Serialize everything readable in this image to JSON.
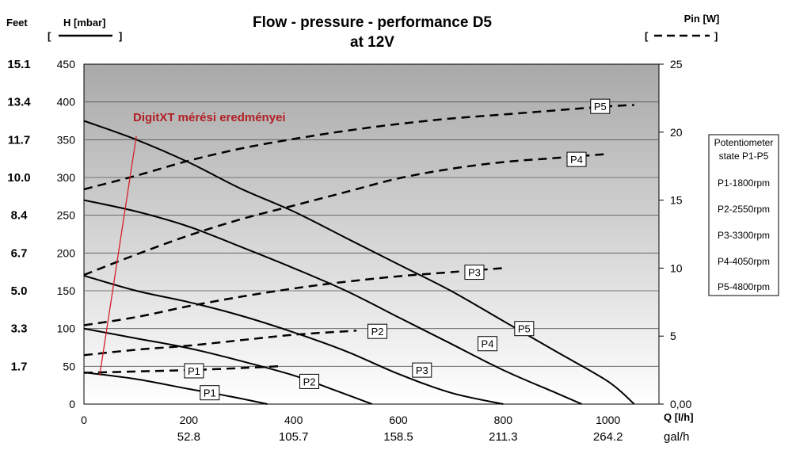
{
  "chart_data": {
    "type": "line",
    "title": "Flow - pressure - performance D5",
    "subtitle": "at 12V",
    "left_axis": {
      "header": "Feet",
      "label": "H [mbar]",
      "bracket_open": "[",
      "bracket_close": "]",
      "ticks": [
        0,
        50,
        100,
        150,
        200,
        250,
        300,
        350,
        400,
        450
      ],
      "ylim": [
        0,
        450
      ],
      "feet_ticks": [
        {
          "at": 50,
          "label": "1.7"
        },
        {
          "at": 100,
          "label": "3.3"
        },
        {
          "at": 150,
          "label": "5.0"
        },
        {
          "at": 200,
          "label": "6.7"
        },
        {
          "at": 250,
          "label": "8.4"
        },
        {
          "at": 300,
          "label": "10.0"
        },
        {
          "at": 350,
          "label": "11.7"
        },
        {
          "at": 400,
          "label": "13.4"
        },
        {
          "at": 450,
          "label": "15.1"
        }
      ]
    },
    "right_axis": {
      "label": "Pin [W]",
      "bracket_open": "[",
      "bracket_close": "]",
      "ticks": [
        {
          "at": 0,
          "label": "0,00"
        },
        {
          "at": 5,
          "label": "5"
        },
        {
          "at": 10,
          "label": "10"
        },
        {
          "at": 15,
          "label": "15"
        },
        {
          "at": 20,
          "label": "20"
        },
        {
          "at": 25,
          "label": "25"
        }
      ],
      "ylim": [
        0,
        25
      ]
    },
    "x_axis": {
      "label": "Q [l/h]",
      "xlim": [
        0,
        1100
      ],
      "ticks": [
        0,
        200,
        400,
        600,
        800,
        1000
      ],
      "gal_label": "gal/h",
      "gal_ticks": [
        {
          "at": 200,
          "label": "52.8"
        },
        {
          "at": 400,
          "label": "105.7"
        },
        {
          "at": 600,
          "label": "158.5"
        },
        {
          "at": 800,
          "label": "211.3"
        },
        {
          "at": 1000,
          "label": "264.2"
        }
      ]
    },
    "grid": true,
    "pressure_series": [
      {
        "name": "P1",
        "label_at": [
          240,
          15
        ],
        "points": [
          [
            0,
            42
          ],
          [
            100,
            33
          ],
          [
            200,
            20
          ],
          [
            280,
            10
          ],
          [
            350,
            0
          ]
        ]
      },
      {
        "name": "P2",
        "label_at": [
          430,
          30
        ],
        "points": [
          [
            0,
            100
          ],
          [
            100,
            87
          ],
          [
            200,
            74
          ],
          [
            300,
            57
          ],
          [
            400,
            38
          ],
          [
            480,
            18
          ],
          [
            550,
            0
          ]
        ]
      },
      {
        "name": "P3",
        "label_at": [
          645,
          45
        ],
        "points": [
          [
            0,
            170
          ],
          [
            100,
            150
          ],
          [
            200,
            135
          ],
          [
            300,
            117
          ],
          [
            400,
            95
          ],
          [
            500,
            70
          ],
          [
            600,
            40
          ],
          [
            700,
            15
          ],
          [
            800,
            0
          ]
        ]
      },
      {
        "name": "P4",
        "label_at": [
          770,
          80
        ],
        "points": [
          [
            0,
            270
          ],
          [
            100,
            255
          ],
          [
            200,
            235
          ],
          [
            300,
            208
          ],
          [
            400,
            180
          ],
          [
            500,
            150
          ],
          [
            600,
            115
          ],
          [
            700,
            80
          ],
          [
            800,
            45
          ],
          [
            900,
            15
          ],
          [
            950,
            0
          ]
        ]
      },
      {
        "name": "P5",
        "label_at": [
          840,
          100
        ],
        "points": [
          [
            0,
            375
          ],
          [
            100,
            350
          ],
          [
            200,
            320
          ],
          [
            300,
            285
          ],
          [
            400,
            255
          ],
          [
            500,
            220
          ],
          [
            600,
            185
          ],
          [
            700,
            150
          ],
          [
            800,
            110
          ],
          [
            900,
            70
          ],
          [
            1000,
            30
          ],
          [
            1050,
            0
          ]
        ]
      }
    ],
    "power_series": [
      {
        "name": "P1",
        "label_at": [
          210,
          2.45
        ],
        "points": [
          [
            0,
            2.3
          ],
          [
            100,
            2.4
          ],
          [
            200,
            2.5
          ],
          [
            300,
            2.65
          ],
          [
            380,
            2.8
          ]
        ]
      },
      {
        "name": "P2",
        "label_at": [
          560,
          5.35
        ],
        "points": [
          [
            0,
            3.6
          ],
          [
            100,
            4.0
          ],
          [
            200,
            4.3
          ],
          [
            300,
            4.7
          ],
          [
            400,
            5.1
          ],
          [
            520,
            5.4
          ]
        ]
      },
      {
        "name": "P3",
        "label_at": [
          745,
          9.7
        ],
        "points": [
          [
            0,
            5.8
          ],
          [
            100,
            6.4
          ],
          [
            200,
            7.2
          ],
          [
            300,
            7.9
          ],
          [
            400,
            8.5
          ],
          [
            500,
            9.0
          ],
          [
            600,
            9.4
          ],
          [
            700,
            9.7
          ],
          [
            800,
            10.0
          ]
        ]
      },
      {
        "name": "P4",
        "label_at": [
          940,
          18.0
        ],
        "points": [
          [
            0,
            9.5
          ],
          [
            100,
            11.0
          ],
          [
            200,
            12.4
          ],
          [
            300,
            13.6
          ],
          [
            400,
            14.6
          ],
          [
            500,
            15.6
          ],
          [
            600,
            16.6
          ],
          [
            700,
            17.3
          ],
          [
            800,
            17.8
          ],
          [
            900,
            18.1
          ],
          [
            1000,
            18.4
          ]
        ]
      },
      {
        "name": "P5",
        "label_at": [
          985,
          21.9
        ],
        "points": [
          [
            0,
            15.8
          ],
          [
            100,
            16.8
          ],
          [
            200,
            17.9
          ],
          [
            300,
            18.8
          ],
          [
            400,
            19.5
          ],
          [
            500,
            20.1
          ],
          [
            600,
            20.6
          ],
          [
            700,
            21.0
          ],
          [
            800,
            21.3
          ],
          [
            900,
            21.6
          ],
          [
            1000,
            21.9
          ],
          [
            1050,
            22.0
          ]
        ]
      }
    ],
    "annotation": {
      "text": "DigitXT mérési eredményei",
      "line_from": [
        30,
        38
      ],
      "line_to": [
        100,
        355
      ]
    },
    "legend_box": {
      "lines": [
        "Potentiometer",
        "state  P1-P5",
        "P1-1800rpm",
        "P2-2550rpm",
        "P3-3300rpm",
        "P4-4050rpm",
        "P5-4800rpm"
      ]
    },
    "colors": {
      "bg_top": "#a9a9a9",
      "bg_bottom": "#ffffff",
      "curve": "#000000",
      "annotation": "#b21f24"
    }
  }
}
